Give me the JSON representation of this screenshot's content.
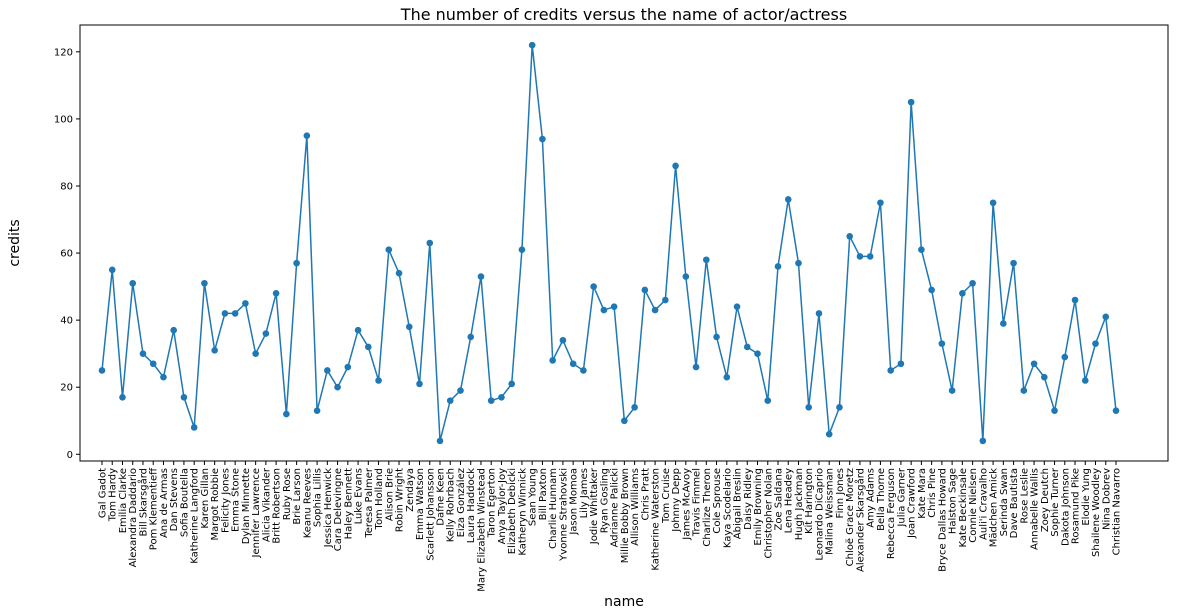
{
  "chart_data": {
    "type": "line",
    "title": "The number of credits versus the name of actor/actress",
    "xlabel": "name",
    "ylabel": "credits",
    "ylim": [
      -2,
      128
    ],
    "yticks": [
      0,
      20,
      40,
      60,
      80,
      100,
      120
    ],
    "grid": false,
    "color": "#1f77b4",
    "categories": [
      "Gal Gadot",
      "Tom Hardy",
      "Emilia Clarke",
      "Alexandra Daddario",
      "Bill Skarsgård",
      "Pom Klementieff",
      "Ana de Armas",
      "Dan Stevens",
      "Sofia Boutella",
      "Katherine Langford",
      "Karen Gillan",
      "Margot Robbie",
      "Felicity Jones",
      "Emma Stone",
      "Dylan Minnette",
      "Jennifer Lawrence",
      "Alicia Vikander",
      "Britt Robertson",
      "Ruby Rose",
      "Brie Larson",
      "Keanu Reeves",
      "Sophia Lillis",
      "Jessica Henwick",
      "Cara Delevingne",
      "Haley Bennett",
      "Luke Evans",
      "Teresa Palmer",
      "Tom Holland",
      "Alison Brie",
      "Robin Wright",
      "Zendaya",
      "Emma Watson",
      "Scarlett Johansson",
      "Dafne Keen",
      "Kelly Rohrbach",
      "Eiza González",
      "Laura Haddock",
      "Mary Elizabeth Winstead",
      "Taron Egerton",
      "Anya Taylor-Joy",
      "Elizabeth Debicki",
      "Katheryn Winnick",
      "Sean Young",
      "Bill Paxton",
      "Charlie Hunnam",
      "Yvonne Strahovski",
      "Jason Momoa",
      "Lily James",
      "Jodie Whittaker",
      "Ryan Gosling",
      "Adrianne Palicki",
      "Millie Bobby Brown",
      "Allison Williams",
      "Chris Pratt",
      "Katherine Waterston",
      "Tom Cruise",
      "Johnny Depp",
      "James McAvoy",
      "Travis Fimmel",
      "Charlize Theron",
      "Cole Sprouse",
      "Kaya Scodelario",
      "Abigail Breslin",
      "Daisy Ridley",
      "Emily Browning",
      "Christopher Nolan",
      "Zoe Saldana",
      "Lena Headey",
      "Hugh Jackman",
      "Kit Harington",
      "Leonardo DiCaprio",
      "Malina Weissman",
      "Finn Jones",
      "Chloë Grace Moretz",
      "Alexander Skarsgård",
      "Amy Adams",
      "Bella Thorne",
      "Rebecca Ferguson",
      "Julia Garner",
      "Joan Crawford",
      "Kate Mara",
      "Chris Pine",
      "Bryce Dallas Howard",
      "Halston Sage",
      "Kate Beckinsale",
      "Connie Nielsen",
      "Auli'i Cravalho",
      "Mädchen Amick",
      "Serinda Swan",
      "Dave Bautista",
      "Rose Leslie",
      "Annabelle Wallis",
      "Zoey Deutch",
      "Sophie Turner",
      "Dakota Johnson",
      "Rosamund Pike",
      "Elodie Yung",
      "Shailene Woodley",
      "Nina Dobrev",
      "Christian Navarro"
    ],
    "values": [
      25,
      55,
      17,
      51,
      30,
      27,
      23,
      37,
      17,
      8,
      51,
      31,
      42,
      42,
      45,
      30,
      36,
      48,
      12,
      57,
      95,
      13,
      25,
      20,
      26,
      37,
      32,
      22,
      61,
      54,
      38,
      21,
      63,
      4,
      16,
      19,
      35,
      53,
      16,
      17,
      21,
      61,
      122,
      94,
      28,
      34,
      27,
      25,
      50,
      43,
      44,
      10,
      14,
      49,
      43,
      46,
      86,
      53,
      26,
      58,
      35,
      23,
      44,
      32,
      30,
      16,
      56,
      76,
      57,
      14,
      42,
      6,
      14,
      65,
      59,
      59,
      75,
      25,
      27,
      105,
      61,
      49,
      33,
      19,
      48,
      51,
      4,
      75,
      39,
      57,
      19,
      27,
      23,
      13,
      29,
      46,
      22,
      33,
      41,
      13
    ]
  }
}
